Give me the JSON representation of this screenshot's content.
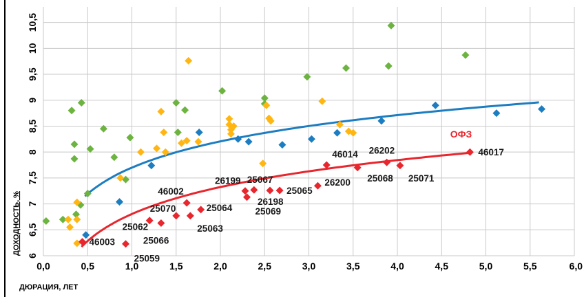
{
  "chart_data": {
    "type": "scatter",
    "title": "",
    "xlabel": "ДЮРАЦИЯ, ЛЕТ",
    "ylabel": "ДОХОДНОСТЬ, %",
    "xlim": [
      0,
      6
    ],
    "ylim": [
      6,
      10.8
    ],
    "x_ticks": [
      "0,0",
      "0,5",
      "1,0",
      "1,5",
      "2,0",
      "2,5",
      "3,0",
      "3,5",
      "4,0",
      "4,5",
      "5,0",
      "5,5",
      "6,0"
    ],
    "y_ticks": [
      "6",
      "6,5",
      "7",
      "7,5",
      "8",
      "8,5",
      "9",
      "9,5",
      "10",
      "10,5"
    ],
    "grid": true,
    "colors": {
      "ofz": "#e8262e",
      "blue": "#1c7dc1",
      "green": "#6cb33f",
      "yellow": "#ffb612",
      "grid": "#c8c8c8"
    },
    "curve_labels": [
      {
        "text": "ОФЗ",
        "color": "#e8262e"
      }
    ],
    "series": [
      {
        "key": "ofz",
        "color": "#e8262e",
        "points": [
          {
            "x": 0.44,
            "y": 6.27,
            "label": "46003"
          },
          {
            "x": 0.93,
            "y": 6.23,
            "label": "25059"
          },
          {
            "x": 1.2,
            "y": 6.68,
            "label": "25062"
          },
          {
            "x": 1.33,
            "y": 6.63,
            "label": "25066"
          },
          {
            "x": 1.5,
            "y": 6.77,
            "label": "25070"
          },
          {
            "x": 1.62,
            "y": 7.02,
            "label": "46002"
          },
          {
            "x": 1.66,
            "y": 6.77,
            "label": "25063"
          },
          {
            "x": 1.78,
            "y": 6.89,
            "label": "25064"
          },
          {
            "x": 2.28,
            "y": 7.25,
            "label": "26199"
          },
          {
            "x": 2.3,
            "y": 7.13,
            "label": "25069"
          },
          {
            "x": 2.38,
            "y": 7.27,
            "label": "25067"
          },
          {
            "x": 2.56,
            "y": 7.26,
            "label": "26198"
          },
          {
            "x": 2.67,
            "y": 7.26,
            "label": "25065"
          },
          {
            "x": 3.1,
            "y": 7.35,
            "label": "26200"
          },
          {
            "x": 3.2,
            "y": 7.75,
            "label": "46014"
          },
          {
            "x": 3.55,
            "y": 7.7,
            "label": "25068"
          },
          {
            "x": 3.88,
            "y": 7.8,
            "label": "26202"
          },
          {
            "x": 4.03,
            "y": 7.74,
            "label": "25071"
          },
          {
            "x": 4.82,
            "y": 8.0,
            "label": "46017"
          }
        ]
      },
      {
        "key": "blue",
        "color": "#1c7dc1",
        "points": [
          {
            "x": 0.48,
            "y": 6.4
          },
          {
            "x": 0.86,
            "y": 7.04
          },
          {
            "x": 1.22,
            "y": 7.74
          },
          {
            "x": 1.76,
            "y": 8.38
          },
          {
            "x": 2.2,
            "y": 8.25
          },
          {
            "x": 2.32,
            "y": 8.2
          },
          {
            "x": 2.7,
            "y": 8.14
          },
          {
            "x": 3.03,
            "y": 8.25
          },
          {
            "x": 3.32,
            "y": 8.37
          },
          {
            "x": 3.82,
            "y": 8.6
          },
          {
            "x": 4.43,
            "y": 8.9
          },
          {
            "x": 5.12,
            "y": 8.75
          },
          {
            "x": 5.63,
            "y": 8.83
          }
        ]
      },
      {
        "key": "green",
        "color": "#6cb33f",
        "points": [
          {
            "x": 0.03,
            "y": 6.67
          },
          {
            "x": 0.22,
            "y": 6.7
          },
          {
            "x": 0.32,
            "y": 8.8
          },
          {
            "x": 0.35,
            "y": 8.15
          },
          {
            "x": 0.35,
            "y": 7.87
          },
          {
            "x": 0.37,
            "y": 6.8
          },
          {
            "x": 0.42,
            "y": 6.98
          },
          {
            "x": 0.43,
            "y": 8.95
          },
          {
            "x": 0.5,
            "y": 7.2
          },
          {
            "x": 0.53,
            "y": 8.06
          },
          {
            "x": 0.68,
            "y": 8.45
          },
          {
            "x": 0.8,
            "y": 7.9
          },
          {
            "x": 0.93,
            "y": 7.47
          },
          {
            "x": 0.98,
            "y": 8.28
          },
          {
            "x": 1.5,
            "y": 8.95
          },
          {
            "x": 1.52,
            "y": 8.38
          },
          {
            "x": 1.6,
            "y": 8.81
          },
          {
            "x": 2.02,
            "y": 9.18
          },
          {
            "x": 2.5,
            "y": 9.04
          },
          {
            "x": 2.5,
            "y": 8.93
          },
          {
            "x": 2.98,
            "y": 9.45
          },
          {
            "x": 3.42,
            "y": 9.62
          },
          {
            "x": 3.9,
            "y": 9.66
          },
          {
            "x": 3.93,
            "y": 10.44
          },
          {
            "x": 4.77,
            "y": 9.87
          }
        ]
      },
      {
        "key": "yellow",
        "color": "#ffb612",
        "points": [
          {
            "x": 0.28,
            "y": 6.7
          },
          {
            "x": 0.3,
            "y": 6.55
          },
          {
            "x": 0.38,
            "y": 6.24
          },
          {
            "x": 0.38,
            "y": 7.03
          },
          {
            "x": 0.38,
            "y": 6.7
          },
          {
            "x": 0.87,
            "y": 7.5
          },
          {
            "x": 1.1,
            "y": 8.0
          },
          {
            "x": 1.28,
            "y": 8.07
          },
          {
            "x": 1.33,
            "y": 8.78
          },
          {
            "x": 1.36,
            "y": 8.38
          },
          {
            "x": 1.38,
            "y": 8.0
          },
          {
            "x": 1.56,
            "y": 8.17
          },
          {
            "x": 1.62,
            "y": 8.22
          },
          {
            "x": 1.64,
            "y": 9.76
          },
          {
            "x": 1.75,
            "y": 8.2
          },
          {
            "x": 2.1,
            "y": 8.64
          },
          {
            "x": 2.1,
            "y": 8.53
          },
          {
            "x": 2.12,
            "y": 8.43
          },
          {
            "x": 2.12,
            "y": 8.35
          },
          {
            "x": 2.15,
            "y": 8.5
          },
          {
            "x": 2.48,
            "y": 7.78
          },
          {
            "x": 2.52,
            "y": 8.9
          },
          {
            "x": 2.55,
            "y": 8.65
          },
          {
            "x": 2.57,
            "y": 8.6
          },
          {
            "x": 3.15,
            "y": 8.98
          },
          {
            "x": 3.35,
            "y": 8.53
          },
          {
            "x": 3.45,
            "y": 8.4
          },
          {
            "x": 3.5,
            "y": 8.37
          }
        ]
      }
    ],
    "trend_lines": [
      {
        "key": "ofz-trend",
        "color": "#e8262e",
        "a": 6.805,
        "b": 0.75,
        "x_from": 0.43,
        "x_to": 4.82
      },
      {
        "key": "blue-trend",
        "color": "#1c7dc1",
        "a": 7.7,
        "b": 0.73,
        "x_from": 0.47,
        "x_to": 5.6
      }
    ]
  }
}
